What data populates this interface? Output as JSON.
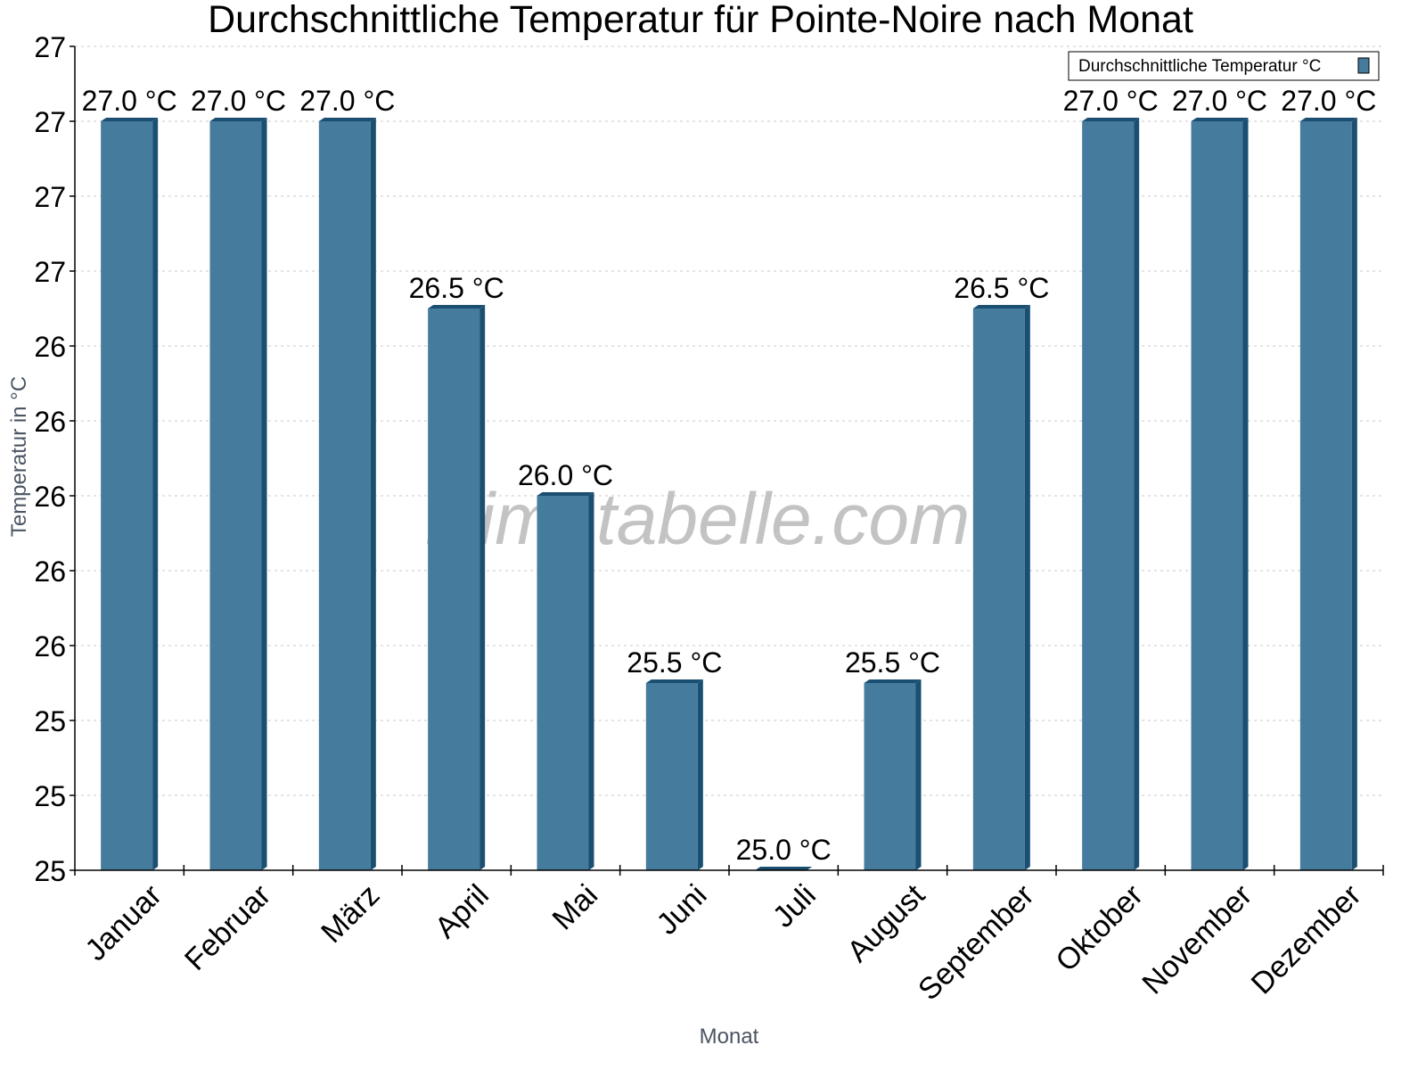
{
  "chart_data": {
    "type": "bar",
    "title": "Durchschnittliche Temperatur für Pointe-Noire nach Monat",
    "xlabel": "Monat",
    "ylabel": "Temperatur in °C",
    "categories": [
      "Januar",
      "Februar",
      "März",
      "April",
      "Mai",
      "Juni",
      "Juli",
      "August",
      "September",
      "Oktober",
      "November",
      "Dezember"
    ],
    "series": [
      {
        "name": "Durchschnittliche Temperatur °C",
        "values": [
          27.0,
          27.0,
          27.0,
          26.5,
          26.0,
          25.5,
          25.0,
          25.5,
          26.5,
          27.0,
          27.0,
          27.0
        ],
        "color": "#457b9d",
        "side_color": "#1b4f72"
      }
    ],
    "value_labels": [
      "27.0 °C",
      "27.0 °C",
      "27.0 °C",
      "26.5 °C",
      "26.0 °C",
      "25.5 °C",
      "25.0 °C",
      "25.5 °C",
      "26.5 °C",
      "27.0 °C",
      "27.0 °C",
      "27.0 °C"
    ],
    "ylim": [
      25.0,
      27.2
    ],
    "ytick_values": [
      25.0,
      25.2,
      25.4,
      25.6,
      25.8,
      26.0,
      26.2,
      26.4,
      26.6,
      26.8,
      27.0,
      27.2
    ],
    "ytick_labels": [
      "25",
      "25",
      "25",
      "26",
      "26",
      "26",
      "26",
      "26",
      "27",
      "27",
      "27",
      "27"
    ],
    "grid": true,
    "legend_position": "top-right",
    "watermark": "klimatabelle.com"
  }
}
